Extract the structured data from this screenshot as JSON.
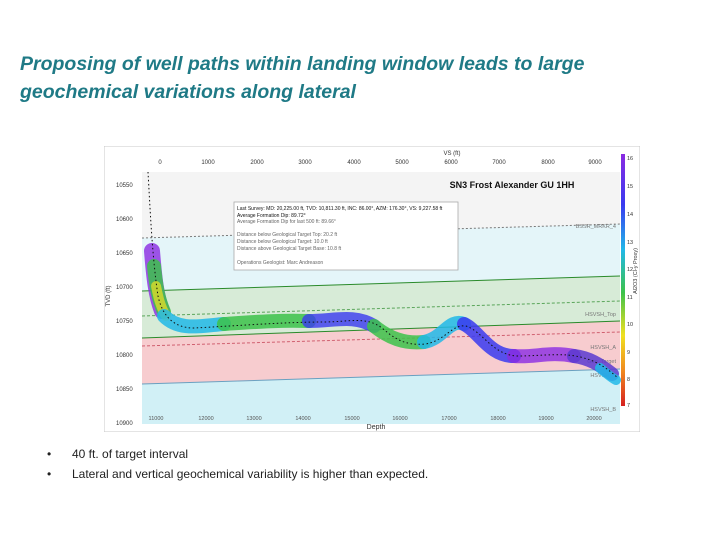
{
  "slide": {
    "title_line1": "Proposing of well paths within landing window leads to large",
    "title_line2": "geochemical variations along lateral",
    "bullets": [
      "40 ft. of target interval",
      "Lateral and vertical geochemical variability is higher than expected."
    ]
  },
  "plot": {
    "well_name": "SN3 Frost Alexander GU 1HH",
    "top_axis_label": "VS (ft)",
    "top_ticks": [
      "0",
      "1000",
      "2000",
      "3000",
      "4000",
      "5000",
      "6000",
      "7000",
      "8000",
      "9000"
    ],
    "left_axis_label": "TVD (ft)",
    "left_ticks": [
      "10550",
      "10600",
      "10650",
      "10700",
      "10750",
      "10800",
      "10850",
      "10900"
    ],
    "bottom_ticks": [
      "11000",
      "12000",
      "13000",
      "14000",
      "15000",
      "16000",
      "17000",
      "18000",
      "19000",
      "20000"
    ],
    "bottom_axis_label": "Depth",
    "colorbar_label": "Al2O3 (Cl-y Proxy)",
    "colorbar_ticks": [
      "16",
      "15",
      "14",
      "13",
      "12",
      "11",
      "10",
      "9",
      "8",
      "7"
    ],
    "formations": [
      "BSSR_MRKR_4",
      "HSVSH_Top",
      "HSVSH_A",
      "Geo_Target",
      "HSVSH_B",
      "HSVSH_B"
    ],
    "info_box": {
      "line1": "Last Survey: MD: 20,225.00 ft, TVD: 10,811.30 ft, INC: 86.00°, AZM: 176.30°, VS: 9,227.58 ft",
      "line2": "Average Formation Dip: 89.72°",
      "line3": "Average Formation Dip for last 500 ft: 89.66°",
      "line4": "Distance below Geological Target Top: 20.2 ft",
      "line5": "Distance below Geological Target: 10.0 ft",
      "line6": "Distance above Geological Target Base: 10.8 ft",
      "line7": "Operations Geologist: Marc Andreason"
    },
    "colors": {
      "zone_green": "#cfe8cf",
      "zone_pink": "#f7c4c8",
      "zone_blue": "#cdeff6",
      "colorbar_top": "#8a2be2",
      "colorbar_bottom": "#d62020"
    }
  }
}
